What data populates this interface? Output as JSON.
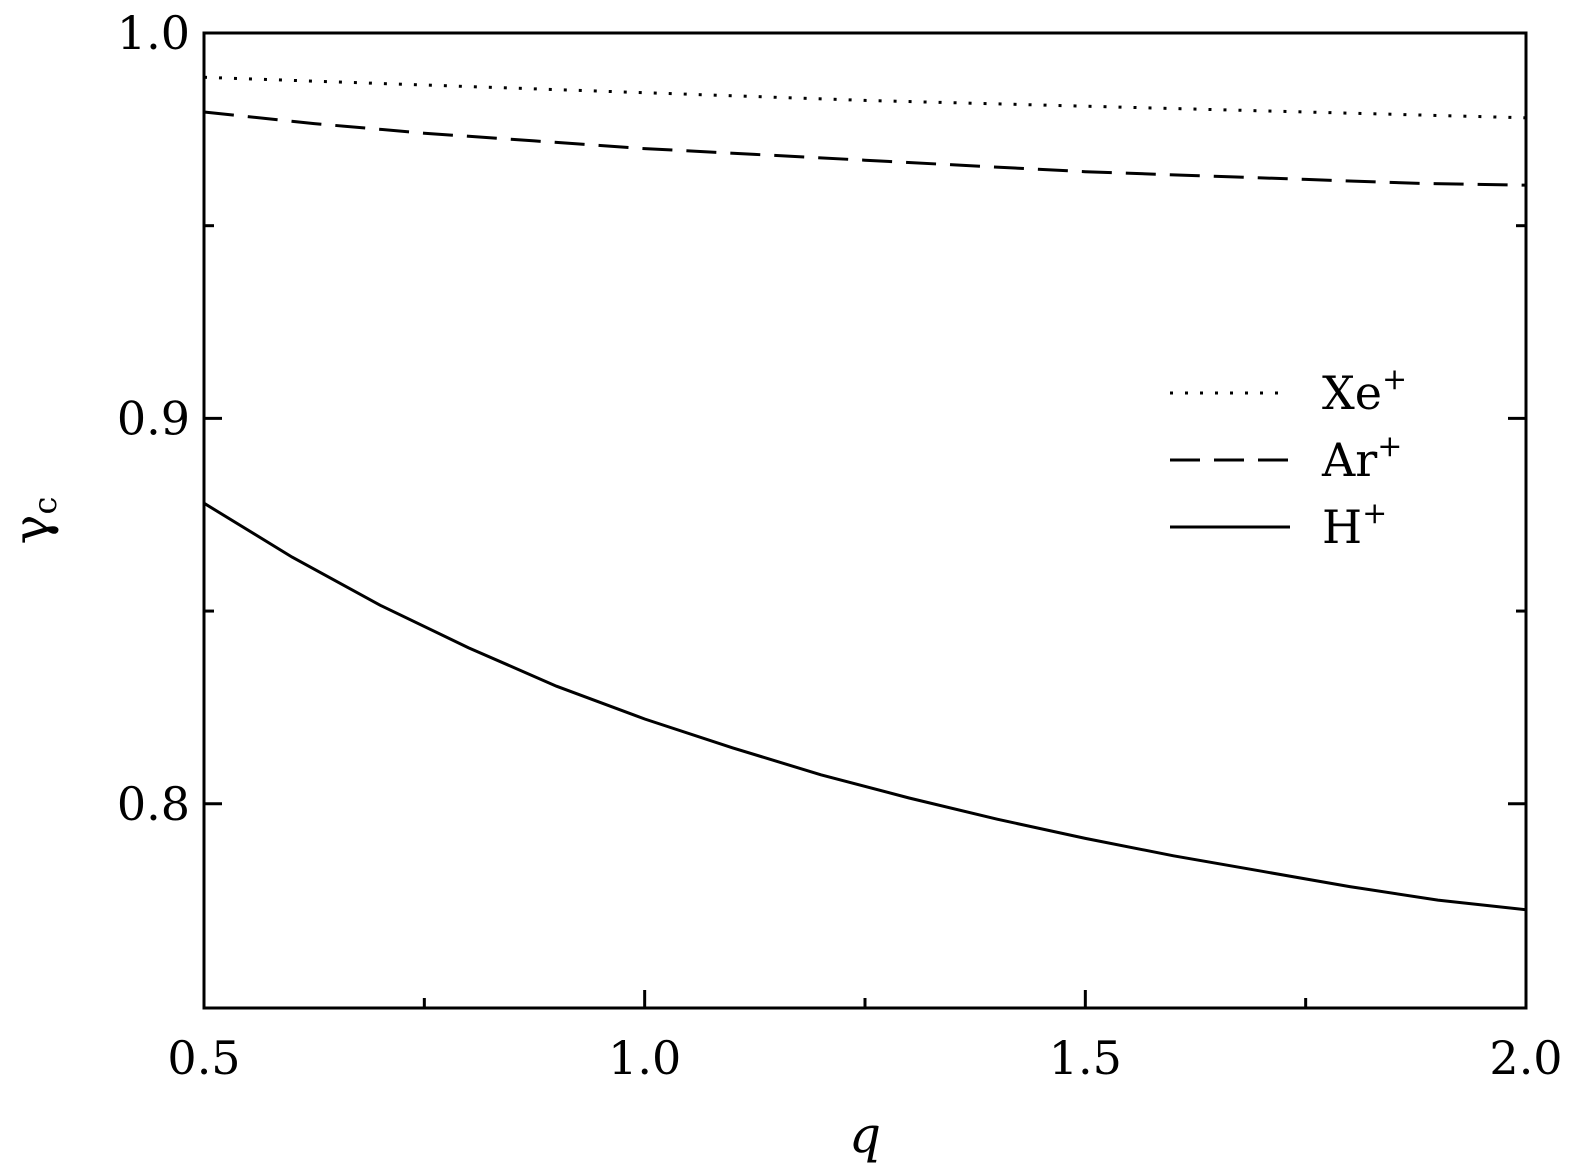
{
  "chart_data": {
    "type": "line",
    "xlabel": "q",
    "ylabel": "γ",
    "ylabel_sub": "c",
    "xlim": [
      0.5,
      2.0
    ],
    "ylim": [
      0.747,
      1.0
    ],
    "x_ticks_major": [
      0.5,
      1.0,
      1.5,
      2.0
    ],
    "x_tick_labels": [
      "0.5",
      "1.0",
      "1.5",
      "2.0"
    ],
    "x_ticks_minor": [
      0.75,
      1.25,
      1.75
    ],
    "y_ticks_major": [
      0.8,
      0.9,
      1.0
    ],
    "y_tick_labels": [
      "0.8",
      "0.9",
      "1.0"
    ],
    "y_ticks_minor": [
      0.85,
      0.95
    ],
    "grid": false,
    "legend_position": "right",
    "series": [
      {
        "name": "Xe",
        "name_sup": "+",
        "style": "dotted",
        "color": "#000000",
        "x": [
          0.5,
          0.75,
          1.0,
          1.25,
          1.5,
          1.75,
          2.0
        ],
        "y": [
          0.9885,
          0.9865,
          0.9845,
          0.9825,
          0.981,
          0.9795,
          0.978
        ]
      },
      {
        "name": "Ar",
        "name_sup": "+",
        "style": "dashed",
        "color": "#000000",
        "x": [
          0.5,
          0.625,
          0.75,
          0.875,
          1.0,
          1.125,
          1.25,
          1.375,
          1.5,
          1.625,
          1.75,
          1.875,
          2.0
        ],
        "y": [
          0.9795,
          0.9765,
          0.974,
          0.972,
          0.97,
          0.9685,
          0.967,
          0.9655,
          0.964,
          0.963,
          0.962,
          0.961,
          0.9605
        ]
      },
      {
        "name": "H",
        "name_sup": "+",
        "style": "solid",
        "color": "#000000",
        "x": [
          0.5,
          0.6,
          0.7,
          0.8,
          0.9,
          1.0,
          1.1,
          1.2,
          1.3,
          1.4,
          1.5,
          1.6,
          1.7,
          1.8,
          1.9,
          2.0
        ],
        "y": [
          0.878,
          0.864,
          0.8515,
          0.8405,
          0.8305,
          0.822,
          0.8145,
          0.8075,
          0.8015,
          0.796,
          0.791,
          0.7865,
          0.7825,
          0.7785,
          0.775,
          0.7725
        ]
      }
    ]
  }
}
